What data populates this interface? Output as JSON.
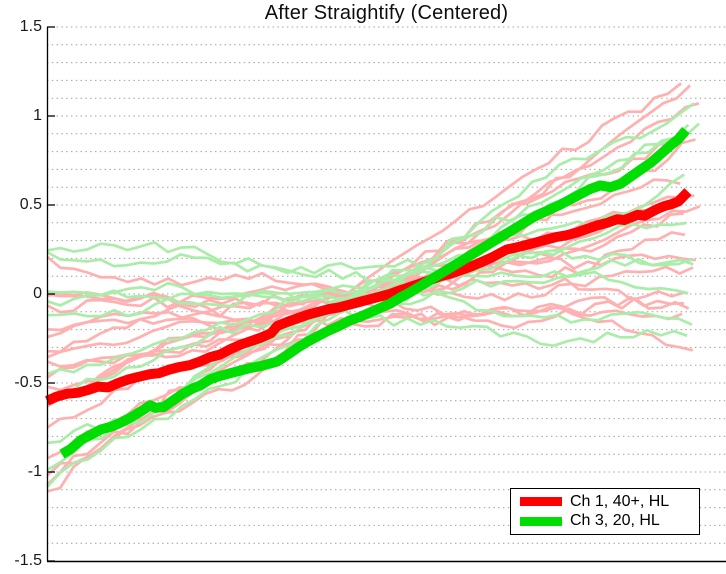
{
  "window": {
    "background": "#ffffff"
  },
  "legend": {
    "position": "bottom-right",
    "items": [
      {
        "label": "Ch 1, 40+, HL",
        "color": "#ff0000"
      },
      {
        "label": "Ch 3, 20, HL",
        "color": "#00dd00"
      }
    ]
  },
  "chart_data": {
    "type": "line",
    "title": "After Straightify (Centered)",
    "xlabel": "",
    "ylabel": "",
    "ylim": [
      -1.5,
      1.5
    ],
    "yticks": [
      -1.5,
      -1,
      -0.5,
      0,
      0.5,
      1,
      1.5
    ],
    "ytick_labels": [
      "-1.5",
      "-1",
      "-0.5",
      "0",
      "0.5",
      "1",
      "1.5"
    ],
    "xtick_labels": [],
    "grid": "dotted-horizontal",
    "minor_grid_step": 0.1,
    "grid_color": "#9c9c9c",
    "axis_color": "#000000",
    "legend_position": "bottom-right",
    "series": [
      {
        "name": "Ch 1, 40+, HL",
        "color": "#ff0000",
        "width": 10,
        "points": [
          [
            0.0,
            -0.6
          ],
          [
            0.015,
            -0.575
          ],
          [
            0.03,
            -0.56
          ],
          [
            0.045,
            -0.555
          ],
          [
            0.06,
            -0.54
          ],
          [
            0.075,
            -0.52
          ],
          [
            0.09,
            -0.525
          ],
          [
            0.105,
            -0.5
          ],
          [
            0.12,
            -0.48
          ],
          [
            0.135,
            -0.465
          ],
          [
            0.152,
            -0.45
          ],
          [
            0.165,
            -0.445
          ],
          [
            0.18,
            -0.425
          ],
          [
            0.195,
            -0.41
          ],
          [
            0.21,
            -0.4
          ],
          [
            0.225,
            -0.38
          ],
          [
            0.24,
            -0.355
          ],
          [
            0.255,
            -0.34
          ],
          [
            0.27,
            -0.31
          ],
          [
            0.285,
            -0.285
          ],
          [
            0.3,
            -0.265
          ],
          [
            0.315,
            -0.245
          ],
          [
            0.33,
            -0.22
          ],
          [
            0.339,
            -0.18
          ],
          [
            0.355,
            -0.155
          ],
          [
            0.37,
            -0.135
          ],
          [
            0.385,
            -0.115
          ],
          [
            0.4,
            -0.1
          ],
          [
            0.415,
            -0.085
          ],
          [
            0.43,
            -0.075
          ],
          [
            0.445,
            -0.06
          ],
          [
            0.46,
            -0.045
          ],
          [
            0.475,
            -0.03
          ],
          [
            0.49,
            -0.015
          ],
          [
            0.505,
            0.0
          ],
          [
            0.52,
            0.02
          ],
          [
            0.535,
            0.04
          ],
          [
            0.55,
            0.06
          ],
          [
            0.565,
            0.08
          ],
          [
            0.58,
            0.1
          ],
          [
            0.595,
            0.115
          ],
          [
            0.61,
            0.135
          ],
          [
            0.625,
            0.155
          ],
          [
            0.64,
            0.18
          ],
          [
            0.655,
            0.205
          ],
          [
            0.677,
            0.25
          ],
          [
            0.69,
            0.26
          ],
          [
            0.705,
            0.275
          ],
          [
            0.72,
            0.29
          ],
          [
            0.735,
            0.305
          ],
          [
            0.75,
            0.32
          ],
          [
            0.765,
            0.33
          ],
          [
            0.78,
            0.345
          ],
          [
            0.795,
            0.365
          ],
          [
            0.81,
            0.385
          ],
          [
            0.825,
            0.4
          ],
          [
            0.84,
            0.42
          ],
          [
            0.85,
            0.415
          ],
          [
            0.86,
            0.43
          ],
          [
            0.87,
            0.445
          ],
          [
            0.88,
            0.44
          ],
          [
            0.89,
            0.46
          ],
          [
            0.9,
            0.48
          ],
          [
            0.91,
            0.495
          ],
          [
            0.92,
            0.505
          ],
          [
            0.93,
            0.52
          ],
          [
            0.944,
            0.575
          ]
        ]
      },
      {
        "name": "Ch 3, 20, HL",
        "color": "#00dd00",
        "width": 10,
        "points": [
          [
            0.022,
            -0.9
          ],
          [
            0.035,
            -0.87
          ],
          [
            0.05,
            -0.82
          ],
          [
            0.065,
            -0.79
          ],
          [
            0.08,
            -0.76
          ],
          [
            0.095,
            -0.745
          ],
          [
            0.11,
            -0.72
          ],
          [
            0.125,
            -0.69
          ],
          [
            0.14,
            -0.655
          ],
          [
            0.152,
            -0.625
          ],
          [
            0.16,
            -0.64
          ],
          [
            0.172,
            -0.635
          ],
          [
            0.185,
            -0.6
          ],
          [
            0.2,
            -0.56
          ],
          [
            0.215,
            -0.53
          ],
          [
            0.225,
            -0.515
          ],
          [
            0.24,
            -0.48
          ],
          [
            0.255,
            -0.46
          ],
          [
            0.27,
            -0.445
          ],
          [
            0.285,
            -0.43
          ],
          [
            0.3,
            -0.415
          ],
          [
            0.315,
            -0.405
          ],
          [
            0.339,
            -0.38
          ],
          [
            0.355,
            -0.34
          ],
          [
            0.37,
            -0.3
          ],
          [
            0.385,
            -0.265
          ],
          [
            0.4,
            -0.235
          ],
          [
            0.415,
            -0.205
          ],
          [
            0.43,
            -0.18
          ],
          [
            0.445,
            -0.15
          ],
          [
            0.46,
            -0.13
          ],
          [
            0.475,
            -0.105
          ],
          [
            0.49,
            -0.08
          ],
          [
            0.505,
            -0.055
          ],
          [
            0.52,
            -0.02
          ],
          [
            0.535,
            0.01
          ],
          [
            0.55,
            0.045
          ],
          [
            0.565,
            0.08
          ],
          [
            0.58,
            0.115
          ],
          [
            0.595,
            0.15
          ],
          [
            0.61,
            0.185
          ],
          [
            0.625,
            0.22
          ],
          [
            0.64,
            0.255
          ],
          [
            0.655,
            0.29
          ],
          [
            0.677,
            0.34
          ],
          [
            0.69,
            0.37
          ],
          [
            0.705,
            0.405
          ],
          [
            0.72,
            0.44
          ],
          [
            0.735,
            0.465
          ],
          [
            0.755,
            0.5
          ],
          [
            0.77,
            0.53
          ],
          [
            0.785,
            0.56
          ],
          [
            0.8,
            0.59
          ],
          [
            0.815,
            0.61
          ],
          [
            0.83,
            0.6
          ],
          [
            0.845,
            0.62
          ],
          [
            0.86,
            0.66
          ],
          [
            0.875,
            0.7
          ],
          [
            0.89,
            0.74
          ],
          [
            0.905,
            0.79
          ],
          [
            0.92,
            0.84
          ],
          [
            0.93,
            0.87
          ],
          [
            0.941,
            0.92
          ]
        ]
      }
    ],
    "background_traces": {
      "description": "faint individual-trial traces, start/end values read from plot edges",
      "colors": {
        "pink": "#ffb0b0",
        "green": "#a9eda9"
      },
      "width": 2.7,
      "points_per_trace": 48,
      "traces": [
        {
          "c": "pink",
          "s": -1.15,
          "e": 1.22,
          "a": 0.06,
          "seed": 1
        },
        {
          "c": "pink",
          "s": -1.05,
          "e": 1.1,
          "a": 0.05,
          "seed": 2
        },
        {
          "c": "pink",
          "s": -0.98,
          "e": 1.05,
          "a": 0.05,
          "seed": 3
        },
        {
          "c": "pink",
          "s": -0.92,
          "e": 0.95,
          "a": 0.05,
          "seed": 4
        },
        {
          "c": "pink",
          "s": -0.75,
          "e": 0.82,
          "a": 0.05,
          "seed": 5
        },
        {
          "c": "pink",
          "s": -0.62,
          "e": 0.66,
          "a": 0.05,
          "seed": 6
        },
        {
          "c": "pink",
          "s": -0.55,
          "e": 0.58,
          "a": 0.05,
          "seed": 7
        },
        {
          "c": "pink",
          "s": -0.48,
          "e": 0.5,
          "a": 0.05,
          "seed": 8
        },
        {
          "c": "pink",
          "s": -0.44,
          "e": 0.46,
          "a": 0.04,
          "seed": 9
        },
        {
          "c": "pink",
          "s": -0.38,
          "e": 0.42,
          "a": 0.05,
          "seed": 10
        },
        {
          "c": "pink",
          "s": -0.3,
          "e": 0.3,
          "a": 0.05,
          "seed": 11
        },
        {
          "c": "pink",
          "s": -0.22,
          "e": 0.24,
          "a": 0.05,
          "seed": 12
        },
        {
          "c": "pink",
          "s": -0.2,
          "e": 0.15,
          "a": 0.05,
          "seed": 13
        },
        {
          "c": "pink",
          "s": 0.18,
          "e": -0.24,
          "a": 0.05,
          "seed": 14
        },
        {
          "c": "pink",
          "s": 0.02,
          "e": -0.1,
          "a": 0.05,
          "seed": 15
        },
        {
          "c": "pink",
          "s": -0.05,
          "e": 0.06,
          "a": 0.06,
          "seed": 16
        },
        {
          "c": "pink",
          "s": -0.1,
          "e": -0.12,
          "a": 0.06,
          "seed": 17
        },
        {
          "c": "pink",
          "s": -0.35,
          "e": -0.05,
          "a": 0.05,
          "seed": 18
        },
        {
          "c": "green",
          "s": -1.1,
          "e": 1.12,
          "a": 0.05,
          "seed": 19
        },
        {
          "c": "green",
          "s": -0.97,
          "e": 1.0,
          "a": 0.05,
          "seed": 20
        },
        {
          "c": "green",
          "s": -0.88,
          "e": 0.9,
          "a": 0.05,
          "seed": 21
        },
        {
          "c": "green",
          "s": -0.58,
          "e": 0.62,
          "a": 0.05,
          "seed": 22
        },
        {
          "c": "green",
          "s": -0.4,
          "e": 0.4,
          "a": 0.05,
          "seed": 23
        },
        {
          "c": "green",
          "s": 0.32,
          "e": -0.2,
          "a": 0.05,
          "seed": 24
        },
        {
          "c": "green",
          "s": 0.26,
          "e": 0.02,
          "a": 0.05,
          "seed": 25
        },
        {
          "c": "green",
          "s": -0.14,
          "e": 0.16,
          "a": 0.05,
          "seed": 26
        },
        {
          "c": "green",
          "s": 0.04,
          "e": -0.28,
          "a": 0.05,
          "seed": 27
        },
        {
          "c": "green",
          "s": -0.06,
          "e": 0.22,
          "a": 0.05,
          "seed": 28
        }
      ]
    }
  }
}
